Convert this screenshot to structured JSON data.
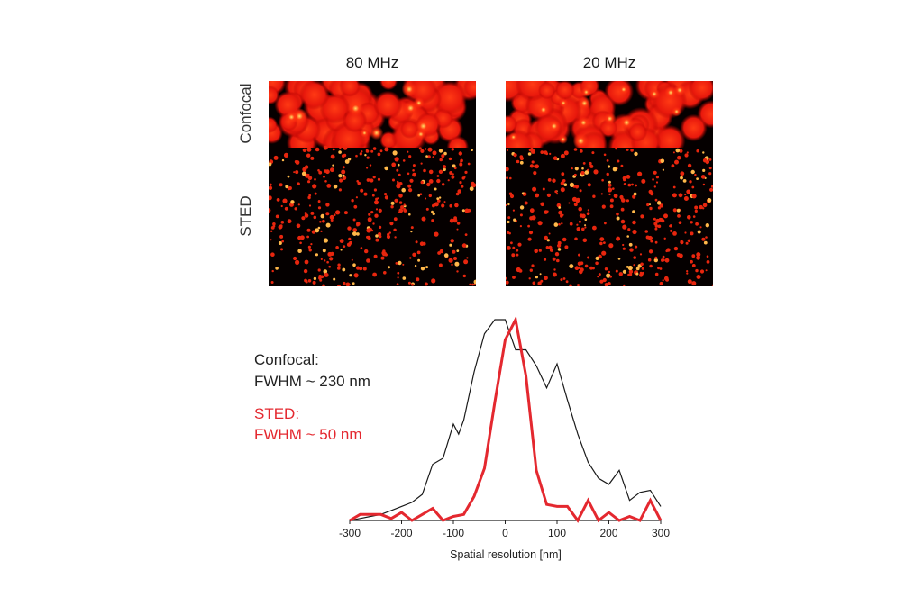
{
  "panels": {
    "column_titles": [
      "80 MHz",
      "20 MHz"
    ],
    "row_labels": [
      "Confocal",
      "STED"
    ]
  },
  "legend": {
    "confocal_title": "Confocal:",
    "confocal_fwhm": "FWHM ~ 230 nm",
    "sted_title": "STED:",
    "sted_fwhm": "FWHM ~ 50 nm"
  },
  "colors": {
    "confocal": "#1a1a1a",
    "sted": "#e4282f",
    "image_hot": "#ff2a10",
    "image_bg": "#050000"
  },
  "chart_data": {
    "type": "line",
    "xlabel": "Spatial resolution [nm]",
    "ylabel": "",
    "xlim": [
      -300,
      300
    ],
    "ylim": [
      0,
      1
    ],
    "xticks": [
      -300,
      -200,
      -100,
      0,
      100,
      200,
      300
    ],
    "series": [
      {
        "name": "Confocal",
        "color": "#1a1a1a",
        "x": [
          -300,
          -280,
          -260,
          -240,
          -220,
          -200,
          -180,
          -160,
          -140,
          -120,
          -100,
          -90,
          -80,
          -60,
          -40,
          -20,
          0,
          20,
          40,
          60,
          80,
          100,
          120,
          140,
          160,
          180,
          200,
          220,
          240,
          260,
          280,
          300
        ],
        "y": [
          0.0,
          0.01,
          0.02,
          0.03,
          0.05,
          0.07,
          0.09,
          0.13,
          0.28,
          0.31,
          0.48,
          0.43,
          0.5,
          0.74,
          0.93,
          1.0,
          1.0,
          0.85,
          0.85,
          0.77,
          0.66,
          0.78,
          0.6,
          0.43,
          0.29,
          0.21,
          0.18,
          0.25,
          0.1,
          0.14,
          0.15,
          0.07
        ]
      },
      {
        "name": "STED",
        "color": "#e4282f",
        "x": [
          -300,
          -280,
          -260,
          -240,
          -220,
          -200,
          -180,
          -160,
          -140,
          -120,
          -100,
          -80,
          -60,
          -40,
          -20,
          0,
          20,
          40,
          60,
          80,
          100,
          120,
          140,
          160,
          180,
          200,
          220,
          240,
          260,
          280,
          300
        ],
        "y": [
          0.0,
          0.03,
          0.03,
          0.03,
          0.01,
          0.04,
          0.0,
          0.03,
          0.06,
          0.0,
          0.02,
          0.03,
          0.12,
          0.26,
          0.59,
          0.9,
          1.0,
          0.72,
          0.25,
          0.08,
          0.07,
          0.07,
          0.0,
          0.1,
          0.0,
          0.04,
          0.0,
          0.02,
          0.0,
          0.1,
          0.0
        ]
      }
    ]
  }
}
